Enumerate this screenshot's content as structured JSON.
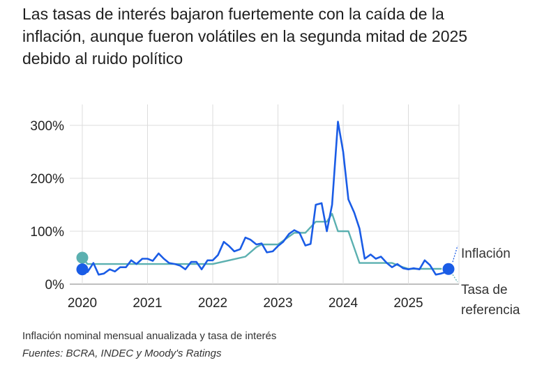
{
  "title_lines": [
    "Las tasas de interés bajaron fuertemente con la caída de la",
    "inflación, aunque fueron volátiles en la segunda mitad de 2025",
    "debido al ruido político"
  ],
  "footnote": "Inflación nominal mensual anualizada y tasa de interés",
  "source": "Fuentes: BCRA, INDEC y Moody's Ratings",
  "chart_data": {
    "type": "line",
    "x_unit": "year (decimal)",
    "xlim": [
      2020.0,
      2025.85
    ],
    "ylim": [
      0,
      330
    ],
    "x_ticks": [
      "2020",
      "2021",
      "2022",
      "2023",
      "2024",
      "2025"
    ],
    "y_ticks": [
      {
        "value": 0,
        "label": "0%"
      },
      {
        "value": 100,
        "label": "100%"
      },
      {
        "value": 200,
        "label": "200%"
      },
      {
        "value": 300,
        "label": "300%"
      }
    ],
    "grid": true,
    "legend": "direct labels at line ends (right)",
    "series": [
      {
        "name": "Inflación",
        "color": "#1a5ce6",
        "x": [
          2020.0,
          2020.08,
          2020.17,
          2020.25,
          2020.33,
          2020.42,
          2020.5,
          2020.58,
          2020.67,
          2020.75,
          2020.83,
          2020.92,
          2021.0,
          2021.08,
          2021.17,
          2021.25,
          2021.33,
          2021.42,
          2021.5,
          2021.58,
          2021.67,
          2021.75,
          2021.83,
          2021.92,
          2022.0,
          2022.08,
          2022.17,
          2022.25,
          2022.33,
          2022.42,
          2022.5,
          2022.58,
          2022.67,
          2022.75,
          2022.83,
          2022.92,
          2023.0,
          2023.08,
          2023.17,
          2023.25,
          2023.33,
          2023.42,
          2023.5,
          2023.58,
          2023.67,
          2023.75,
          2023.83,
          2023.92,
          2024.0,
          2024.08,
          2024.17,
          2024.25,
          2024.33,
          2024.42,
          2024.5,
          2024.58,
          2024.67,
          2024.75,
          2024.83,
          2024.92,
          2025.0,
          2025.08,
          2025.17,
          2025.25,
          2025.33,
          2025.42,
          2025.5,
          2025.58,
          2025.67
        ],
        "y": [
          28,
          23,
          40,
          18,
          20,
          28,
          24,
          32,
          32,
          45,
          38,
          48,
          48,
          44,
          58,
          48,
          40,
          38,
          35,
          28,
          42,
          42,
          28,
          45,
          45,
          55,
          80,
          72,
          62,
          66,
          88,
          84,
          75,
          77,
          60,
          62,
          72,
          80,
          95,
          102,
          97,
          73,
          76,
          150,
          153,
          100,
          150,
          307,
          250,
          160,
          135,
          105,
          48,
          56,
          48,
          52,
          40,
          32,
          38,
          30,
          28,
          30,
          28,
          45,
          36,
          18,
          20,
          23,
          26
        ]
      },
      {
        "name": "Tasa de referencia",
        "color": "#5bb0b0",
        "x": [
          2020.0,
          2020.08,
          2021.0,
          2021.5,
          2022.0,
          2022.25,
          2022.5,
          2022.67,
          2022.75,
          2023.0,
          2023.25,
          2023.42,
          2023.58,
          2023.75,
          2023.83,
          2023.92,
          2024.0,
          2024.08,
          2024.25,
          2024.5,
          2024.75,
          2024.92,
          2025.0,
          2025.25,
          2025.5
        ],
        "y": [
          50,
          38,
          38,
          38,
          38,
          45,
          52,
          70,
          75,
          75,
          97,
          97,
          118,
          118,
          133,
          100,
          100,
          100,
          40,
          40,
          40,
          32,
          29,
          29,
          29
        ]
      }
    ],
    "series_labels": [
      "Inflación",
      "Tasa de",
      "referencia"
    ]
  }
}
